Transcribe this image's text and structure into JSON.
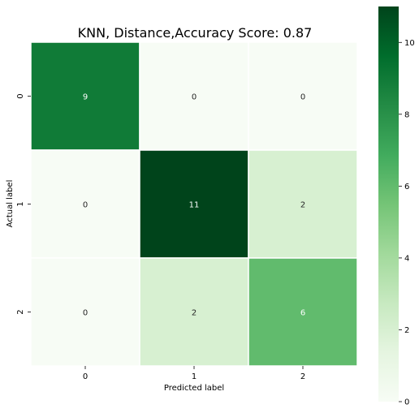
{
  "chart_data": {
    "type": "heatmap",
    "title": "KNN, Distance,Accuracy Score: 0.87",
    "xlabel": "Predicted label",
    "ylabel": "Actual label",
    "x_ticks": [
      "0",
      "1",
      "2"
    ],
    "y_ticks": [
      "0",
      "1",
      "2"
    ],
    "matrix": [
      [
        9,
        0,
        0
      ],
      [
        0,
        11,
        2
      ],
      [
        0,
        2,
        6
      ]
    ],
    "colormap": "Greens",
    "vmin": 0,
    "vmax": 11,
    "colorbar_ticks": [
      0,
      2,
      4,
      6,
      8,
      10
    ],
    "cell_border_color": "#ffffff",
    "text_color_dark_cells": "#ffffff",
    "text_color_light_cells": "#262626"
  }
}
